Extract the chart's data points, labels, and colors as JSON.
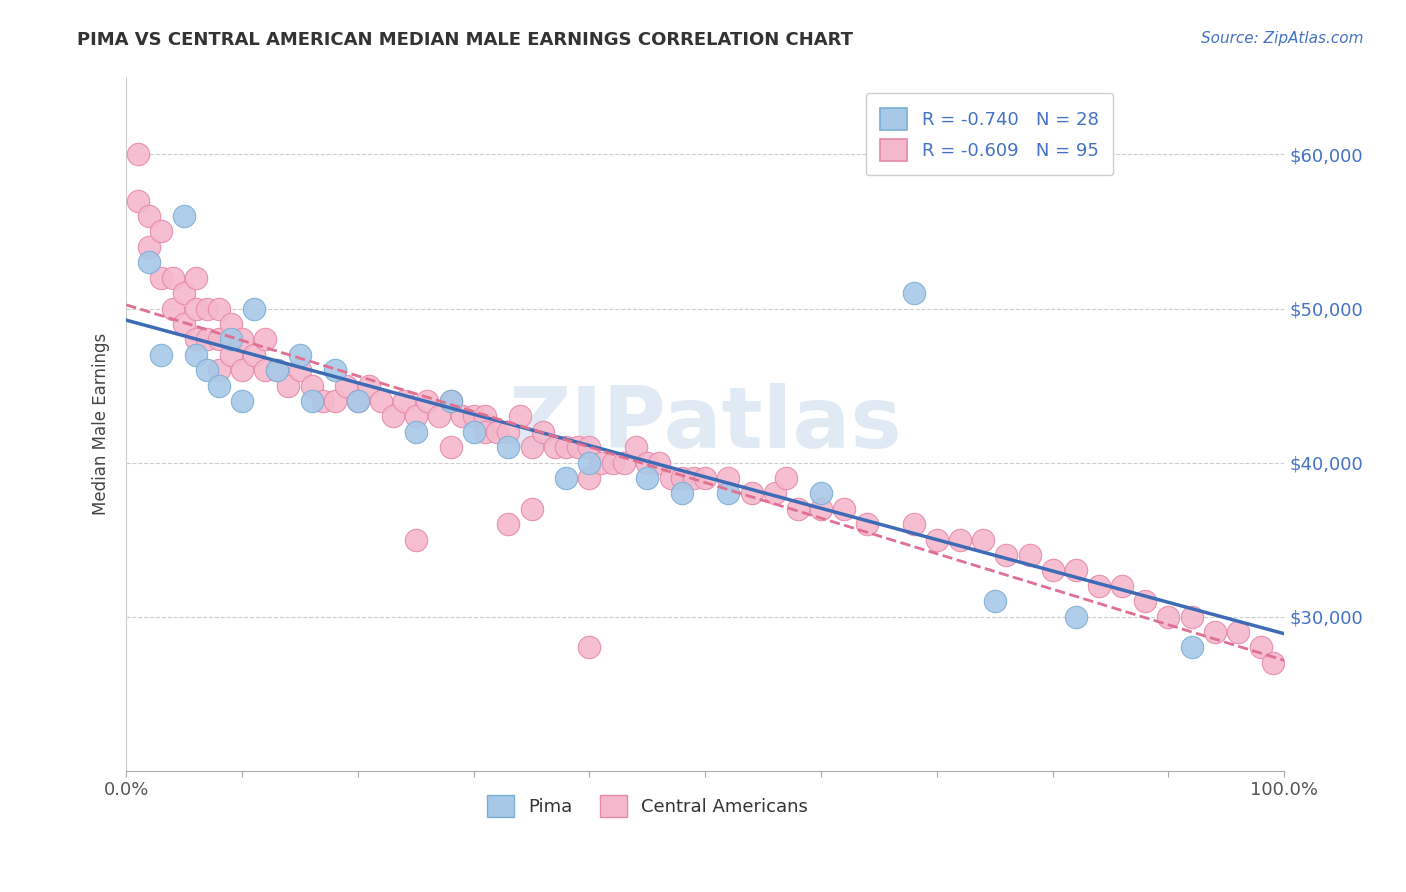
{
  "title": "PIMA VS CENTRAL AMERICAN MEDIAN MALE EARNINGS CORRELATION CHART",
  "source": "Source: ZipAtlas.com",
  "ylabel": "Median Male Earnings",
  "x_min": 0.0,
  "x_max": 1.0,
  "y_min": 20000,
  "y_max": 65000,
  "y_ticks": [
    30000,
    40000,
    50000,
    60000
  ],
  "y_tick_labels": [
    "$30,000",
    "$40,000",
    "$50,000",
    "$60,000"
  ],
  "x_tick_labels": [
    "0.0%",
    "100.0%"
  ],
  "pima_color": "#a8c8e8",
  "pima_edge_color": "#7aafd4",
  "central_color": "#f4b8cc",
  "central_edge_color": "#e888a8",
  "pima_line_color": "#3d6bb5",
  "central_line_color": "#e07090",
  "legend_r_pima": "R = -0.740",
  "legend_n_pima": "N = 28",
  "legend_r_central": "R = -0.609",
  "legend_n_central": "N = 95",
  "watermark_text": "ZIPatlas",
  "pima_x": [
    0.02,
    0.03,
    0.05,
    0.06,
    0.07,
    0.08,
    0.09,
    0.1,
    0.11,
    0.13,
    0.15,
    0.16,
    0.18,
    0.2,
    0.25,
    0.28,
    0.3,
    0.33,
    0.38,
    0.4,
    0.45,
    0.48,
    0.52,
    0.6,
    0.68,
    0.75,
    0.82,
    0.92
  ],
  "pima_y": [
    53000,
    47000,
    56000,
    47000,
    46000,
    45000,
    48000,
    44000,
    50000,
    46000,
    47000,
    44000,
    46000,
    44000,
    42000,
    44000,
    42000,
    41000,
    39000,
    40000,
    39000,
    38000,
    38000,
    38000,
    51000,
    31000,
    30000,
    28000
  ],
  "central_x": [
    0.01,
    0.01,
    0.02,
    0.02,
    0.03,
    0.03,
    0.04,
    0.04,
    0.05,
    0.05,
    0.06,
    0.06,
    0.06,
    0.07,
    0.07,
    0.08,
    0.08,
    0.08,
    0.09,
    0.09,
    0.1,
    0.1,
    0.11,
    0.12,
    0.12,
    0.13,
    0.14,
    0.15,
    0.16,
    0.17,
    0.18,
    0.19,
    0.2,
    0.21,
    0.22,
    0.23,
    0.24,
    0.25,
    0.26,
    0.27,
    0.28,
    0.29,
    0.3,
    0.31,
    0.31,
    0.32,
    0.33,
    0.34,
    0.35,
    0.36,
    0.37,
    0.38,
    0.39,
    0.4,
    0.4,
    0.41,
    0.42,
    0.43,
    0.44,
    0.45,
    0.46,
    0.47,
    0.48,
    0.49,
    0.5,
    0.52,
    0.54,
    0.56,
    0.57,
    0.58,
    0.6,
    0.62,
    0.64,
    0.68,
    0.7,
    0.72,
    0.74,
    0.76,
    0.78,
    0.8,
    0.82,
    0.84,
    0.86,
    0.88,
    0.9,
    0.92,
    0.94,
    0.96,
    0.98,
    0.99,
    0.25,
    0.35,
    0.4,
    0.28,
    0.33
  ],
  "central_y": [
    60000,
    57000,
    56000,
    54000,
    52000,
    55000,
    52000,
    50000,
    51000,
    49000,
    50000,
    48000,
    52000,
    50000,
    48000,
    50000,
    48000,
    46000,
    49000,
    47000,
    48000,
    46000,
    47000,
    46000,
    48000,
    46000,
    45000,
    46000,
    45000,
    44000,
    44000,
    45000,
    44000,
    45000,
    44000,
    43000,
    44000,
    43000,
    44000,
    43000,
    44000,
    43000,
    43000,
    43000,
    42000,
    42000,
    42000,
    43000,
    41000,
    42000,
    41000,
    41000,
    41000,
    41000,
    39000,
    40000,
    40000,
    40000,
    41000,
    40000,
    40000,
    39000,
    39000,
    39000,
    39000,
    39000,
    38000,
    38000,
    39000,
    37000,
    37000,
    37000,
    36000,
    36000,
    35000,
    35000,
    35000,
    34000,
    34000,
    33000,
    33000,
    32000,
    32000,
    31000,
    30000,
    30000,
    29000,
    29000,
    28000,
    27000,
    35000,
    37000,
    28000,
    41000,
    36000
  ]
}
